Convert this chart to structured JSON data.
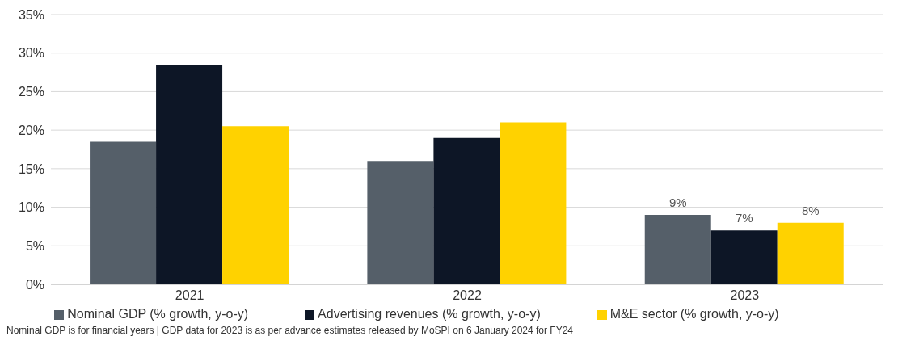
{
  "chart_data": {
    "type": "bar",
    "categories": [
      "2021",
      "2022",
      "2023"
    ],
    "series": [
      {
        "name": "Nominal GDP (% growth, y-o-y)",
        "color": "#555f69",
        "values": [
          18.5,
          16,
          9
        ],
        "value_labels": [
          null,
          null,
          "9%"
        ]
      },
      {
        "name": "Advertising revenues (% growth, y-o-y)",
        "color": "#0d1626",
        "values": [
          28.5,
          19,
          7
        ],
        "value_labels": [
          null,
          null,
          "7%"
        ]
      },
      {
        "name": "M&E sector (% growth, y-o-y)",
        "color": "#ffd200",
        "values": [
          20.5,
          21,
          8
        ],
        "value_labels": [
          null,
          null,
          "8%"
        ]
      }
    ],
    "ylim": [
      0,
      35
    ],
    "yticks": [
      {
        "value": 0,
        "label": "0%"
      },
      {
        "value": 5,
        "label": "5%"
      },
      {
        "value": 10,
        "label": "10%"
      },
      {
        "value": 15,
        "label": "15%"
      },
      {
        "value": 20,
        "label": "20%"
      },
      {
        "value": 25,
        "label": "25%"
      },
      {
        "value": 30,
        "label": "30%"
      },
      {
        "value": 35,
        "label": "35%"
      }
    ],
    "grid": "y",
    "legend": "bottom",
    "annotations": [
      "Nominal GDP is for financial years | GDP data for 2023 is as per advance estimates released by MoSPI on 6 January 2024 for FY24"
    ]
  }
}
